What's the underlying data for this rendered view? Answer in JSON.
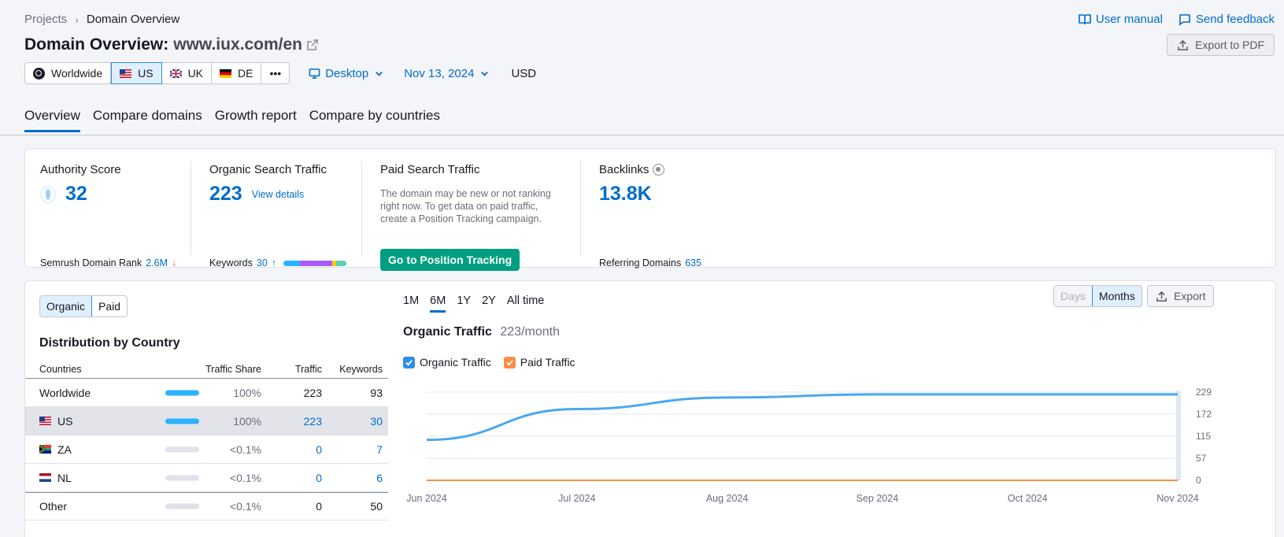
{
  "breadcrumb": {
    "root": "Projects",
    "current": "Domain Overview"
  },
  "top_links": {
    "manual": "User manual",
    "feedback": "Send feedback"
  },
  "title": {
    "prefix": "Domain Overview:",
    "domain": "www.iux.com/en"
  },
  "export_pdf": "Export to PDF",
  "databases": {
    "worldwide": "Worldwide",
    "us": "US",
    "uk": "UK",
    "de": "DE",
    "more": "•••"
  },
  "device": "Desktop",
  "date": "Nov 13, 2024",
  "currency": "USD",
  "tabs": [
    "Overview",
    "Compare domains",
    "Growth report",
    "Compare by countries"
  ],
  "summary": {
    "authority": {
      "label": "Authority Score",
      "value": "32",
      "rank_label": "Semrush Domain Rank",
      "rank_value": "2.6M",
      "rank_arrow": "↓"
    },
    "organic": {
      "label": "Organic Search Traffic",
      "value": "223",
      "link": "View details",
      "kw_label": "Keywords",
      "kw_value": "30",
      "kw_arrow": "↑"
    },
    "paid": {
      "label": "Paid Search Traffic",
      "note": "The domain may be new or not ranking right now. To get data on paid traffic, create a Position Tracking campaign.",
      "button": "Go to Position Tracking"
    },
    "backlinks": {
      "label": "Backlinks",
      "value": "13.8K",
      "ref_label": "Referring Domains",
      "ref_value": "635"
    }
  },
  "keyword_bar_colors": [
    "#2bb3ff",
    "#a75efc",
    "#a75efc",
    "#ffcc00",
    "#58d1b7"
  ],
  "left_panel": {
    "toggle": [
      "Organic",
      "Paid"
    ],
    "title": "Distribution by Country",
    "headers": {
      "country": "Countries",
      "share": "Traffic Share",
      "traffic": "Traffic",
      "keywords": "Keywords"
    },
    "rows": [
      {
        "country": "Worldwide",
        "share": "100%",
        "share_pct": 100,
        "traffic": "223",
        "keywords": "93"
      },
      {
        "country": "US",
        "share": "100%",
        "share_pct": 100,
        "traffic": "223",
        "keywords": "30"
      },
      {
        "country": "ZA",
        "share": "<0.1%",
        "share_pct": 0,
        "traffic": "0",
        "keywords": "7"
      },
      {
        "country": "NL",
        "share": "<0.1%",
        "share_pct": 0,
        "traffic": "0",
        "keywords": "6"
      },
      {
        "country": "Other",
        "share": "<0.1%",
        "share_pct": 0,
        "traffic": "0",
        "keywords": "50"
      }
    ]
  },
  "periods": [
    "1M",
    "6M",
    "1Y",
    "2Y",
    "All time"
  ],
  "view_toggle": {
    "days": "Days",
    "months": "Months"
  },
  "export": "Export",
  "chart_title": {
    "main": "Organic Traffic",
    "sub": "223/month"
  },
  "legend": {
    "organic": "Organic Traffic",
    "paid": "Paid Traffic"
  },
  "colors": {
    "organic": "#4aa8f0",
    "paid": "#ff8c43",
    "accent": "#006dca",
    "button_green": "#009f81"
  },
  "chart_data": {
    "type": "line",
    "x": [
      "Jun 2024",
      "Jul 2024",
      "Aug 2024",
      "Sep 2024",
      "Oct 2024",
      "Nov 2024"
    ],
    "series": [
      {
        "name": "Organic Traffic",
        "values": [
          105,
          185,
          215,
          223,
          223,
          223
        ]
      },
      {
        "name": "Paid Traffic",
        "values": [
          0,
          0,
          0,
          0,
          0,
          0
        ]
      }
    ],
    "y_ticks": [
      "229",
      "172",
      "115",
      "57",
      "0"
    ],
    "ylim": [
      0,
      229
    ],
    "grid": true
  }
}
